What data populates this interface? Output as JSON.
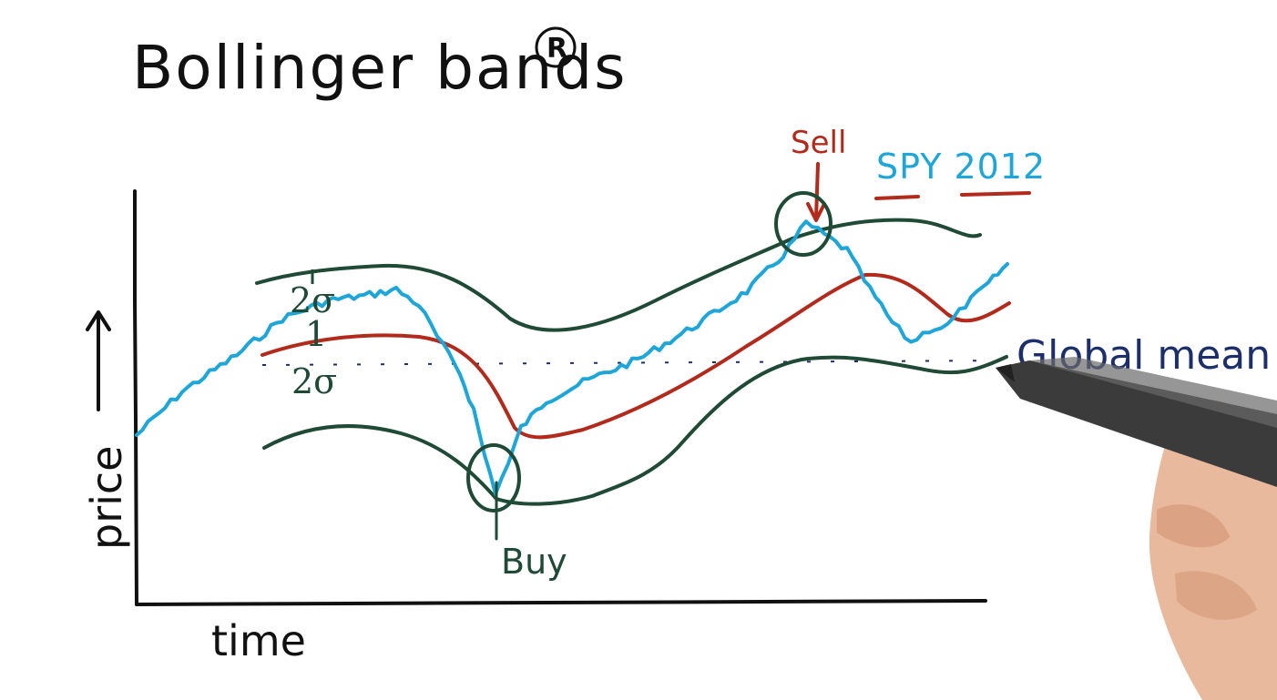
{
  "title": "Bollinger bands",
  "registered_mark": "R",
  "y_axis_label": "price",
  "x_axis_label": "time",
  "band_labels": {
    "upper_sigma": "2σ",
    "lower_sigma": "2σ",
    "tick_upper": "1",
    "tick_lower": "1"
  },
  "annotations": {
    "sell": "Sell",
    "buy": "Buy",
    "series_name": "SPY 2012",
    "global_mean": "Global mean"
  },
  "colors": {
    "price_line": "#1ea6d8",
    "moving_average": "#b22a1c",
    "bands": "#1f4a36",
    "global_mean": "#1c2f6b",
    "axes": "#111111"
  },
  "icons": {
    "pen": "pen-icon",
    "hand": "hand-icon",
    "sell_marker": "circle-marker-icon",
    "buy_marker": "circle-marker-icon"
  }
}
